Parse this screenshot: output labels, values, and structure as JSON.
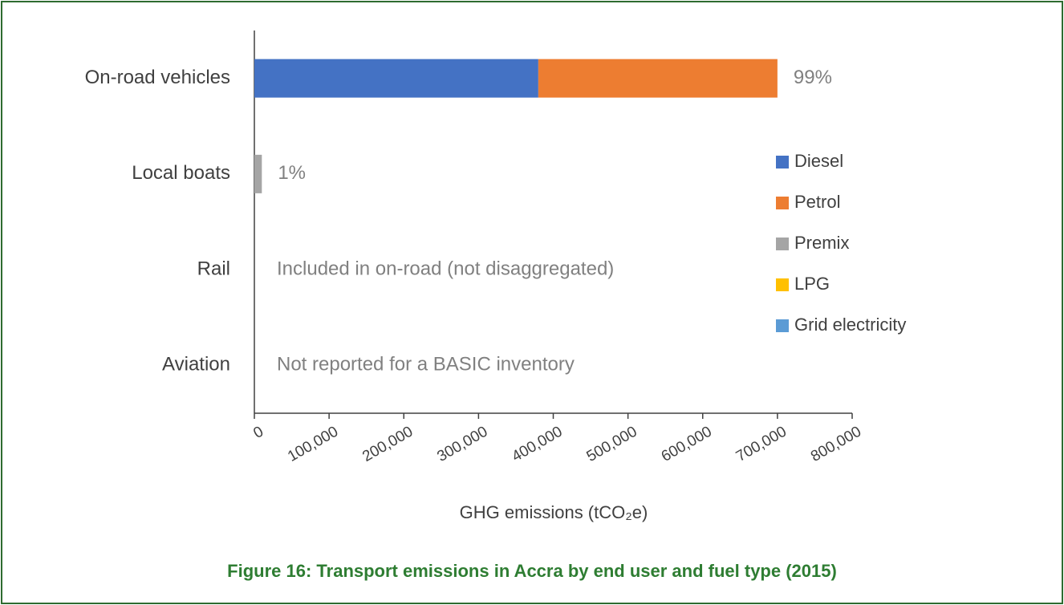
{
  "chart_data": {
    "type": "stacked-barh",
    "categories": [
      "On-road vehicles",
      "Local boats",
      "Rail",
      "Aviation"
    ],
    "series": [
      {
        "name": "Diesel",
        "color": "#4472c4",
        "values": [
          380000,
          null,
          null,
          null
        ]
      },
      {
        "name": "Petrol",
        "color": "#ed7d31",
        "values": [
          320000,
          null,
          null,
          null
        ]
      },
      {
        "name": "Premix",
        "color": "#a5a5a5",
        "values": [
          null,
          10000,
          null,
          null
        ]
      },
      {
        "name": "LPG",
        "color": "#ffc000",
        "values": [
          null,
          null,
          null,
          null
        ]
      },
      {
        "name": "Grid electricity",
        "color": "#5b9bd5",
        "values": [
          null,
          null,
          null,
          null
        ]
      }
    ],
    "annotations": [
      "99%",
      "1%",
      "Included in on-road (not disaggregated)",
      "Not reported for a BASIC inventory"
    ],
    "xlim": [
      0,
      800000
    ],
    "xticks": [
      0,
      {
        "value": 100000,
        "label": "100,000"
      },
      {
        "value": 200000,
        "label": "200,000"
      },
      {
        "value": 300000,
        "label": "300,000"
      },
      {
        "value": 400000,
        "label": "400,000"
      },
      {
        "value": 500000,
        "label": "500,000"
      },
      {
        "value": 600000,
        "label": "600,000"
      },
      {
        "value": 700000,
        "label": "700,000"
      },
      {
        "value": 800000,
        "label": "800,000"
      }
    ],
    "xlabel": "GHG emissions (tCO₂e)",
    "caption": "Figure 16: Transport emissions in Accra by end user and fuel type (2015)",
    "legend": "right"
  }
}
